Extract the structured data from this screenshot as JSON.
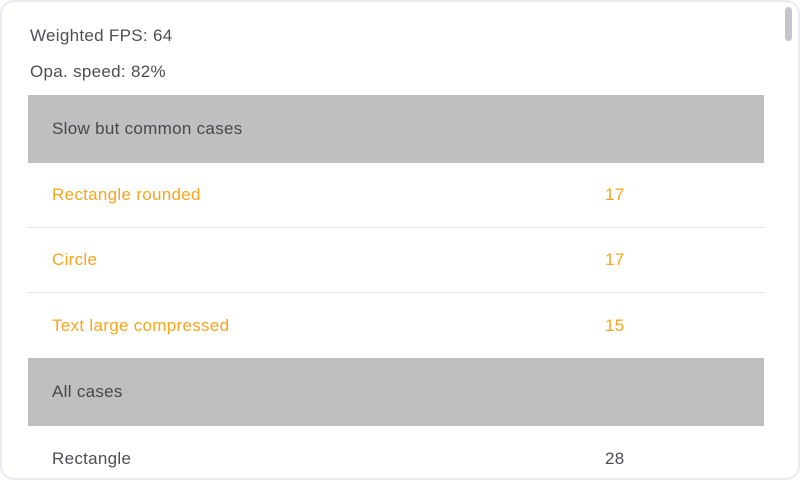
{
  "card": {
    "summary": {
      "weighted_fps": "Weighted FPS: 64",
      "opa_speed": "Opa. speed: 82%"
    },
    "table": {
      "sections": [
        {
          "header": "Slow but common cases",
          "rows": [
            {
              "name": "Rectangle rounded",
              "value": "17"
            },
            {
              "name": "Circle",
              "value": "17"
            },
            {
              "name": "Text large compressed",
              "value": "15"
            }
          ]
        },
        {
          "header": "All cases",
          "rows": [
            {
              "name": "Rectangle",
              "value": "28"
            }
          ]
        }
      ]
    }
  },
  "colors": {
    "accent_orange": "#f9a51d",
    "header_bg": "#bfbfbf",
    "text_dark": "#4b4e54",
    "separator": "#e0e4e8",
    "scrollbar": "#c2c6cb",
    "card_border": "#e8ecf1",
    "card_bg": "#ffffff"
  }
}
